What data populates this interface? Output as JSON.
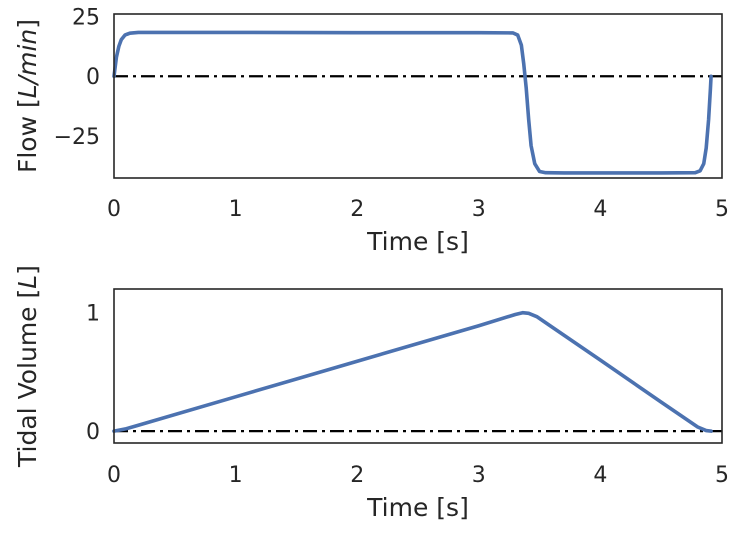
{
  "chart_data": [
    {
      "type": "line",
      "xlabel": "Time [s]",
      "ylabel": {
        "prefix": "Flow [",
        "unit": "L/min",
        "suffix": "]"
      },
      "xlim": [
        0,
        5
      ],
      "ylim": [
        -42.5,
        26
      ],
      "xticks": [
        {
          "value": 0,
          "label": "0"
        },
        {
          "value": 1,
          "label": "1"
        },
        {
          "value": 2,
          "label": "2"
        },
        {
          "value": 3,
          "label": "3"
        },
        {
          "value": 4,
          "label": "4"
        },
        {
          "value": 5,
          "label": "5"
        }
      ],
      "yticks": [
        {
          "value": -25,
          "label": "−25"
        },
        {
          "value": 0,
          "label": "0"
        },
        {
          "value": 25,
          "label": "25"
        }
      ],
      "grid": false,
      "reference_line": {
        "y": 0,
        "style": "dash-dot",
        "color": "#000000"
      },
      "series": [
        {
          "color": "#4c72b0",
          "points": [
            [
              0.0,
              0.0
            ],
            [
              0.01,
              4.0
            ],
            [
              0.02,
              8.0
            ],
            [
              0.04,
              12.5
            ],
            [
              0.06,
              15.3
            ],
            [
              0.09,
              17.2
            ],
            [
              0.13,
              18.0
            ],
            [
              0.2,
              18.3
            ],
            [
              1.0,
              18.3
            ],
            [
              2.0,
              18.2
            ],
            [
              3.0,
              18.2
            ],
            [
              3.28,
              18.1
            ],
            [
              3.32,
              17.2
            ],
            [
              3.35,
              13.0
            ],
            [
              3.37,
              5.0
            ],
            [
              3.39,
              -5.0
            ],
            [
              3.41,
              -18.0
            ],
            [
              3.43,
              -29.0
            ],
            [
              3.46,
              -36.5
            ],
            [
              3.5,
              -39.8
            ],
            [
              3.55,
              -40.3
            ],
            [
              3.7,
              -40.4
            ],
            [
              4.0,
              -40.4
            ],
            [
              4.5,
              -40.4
            ],
            [
              4.78,
              -40.3
            ],
            [
              4.82,
              -39.5
            ],
            [
              4.85,
              -36.5
            ],
            [
              4.87,
              -30.0
            ],
            [
              4.89,
              -18.0
            ],
            [
              4.905,
              -5.0
            ],
            [
              4.91,
              0.0
            ]
          ]
        }
      ]
    },
    {
      "type": "line",
      "xlabel": "Time [s]",
      "ylabel": {
        "prefix": "Tidal Volume [",
        "unit": "L",
        "suffix": "]"
      },
      "xlim": [
        0,
        5
      ],
      "ylim": [
        -0.1,
        1.2
      ],
      "xticks": [
        {
          "value": 0,
          "label": "0"
        },
        {
          "value": 1,
          "label": "1"
        },
        {
          "value": 2,
          "label": "2"
        },
        {
          "value": 3,
          "label": "3"
        },
        {
          "value": 4,
          "label": "4"
        },
        {
          "value": 5,
          "label": "5"
        }
      ],
      "yticks": [
        {
          "value": 0,
          "label": "0"
        },
        {
          "value": 1,
          "label": "1"
        }
      ],
      "grid": false,
      "reference_line": {
        "y": 0,
        "style": "dash-dot",
        "color": "#000000"
      },
      "series": [
        {
          "color": "#4c72b0",
          "points": [
            [
              0.0,
              0.0
            ],
            [
              0.1,
              0.02
            ],
            [
              0.2,
              0.05
            ],
            [
              1.0,
              0.29
            ],
            [
              2.0,
              0.59
            ],
            [
              3.0,
              0.89
            ],
            [
              3.3,
              0.985
            ],
            [
              3.36,
              1.0
            ],
            [
              3.41,
              0.995
            ],
            [
              3.48,
              0.965
            ],
            [
              3.6,
              0.88
            ],
            [
              4.0,
              0.6
            ],
            [
              4.5,
              0.245
            ],
            [
              4.8,
              0.035
            ],
            [
              4.87,
              0.005
            ],
            [
              4.91,
              0.0
            ]
          ]
        }
      ]
    }
  ]
}
